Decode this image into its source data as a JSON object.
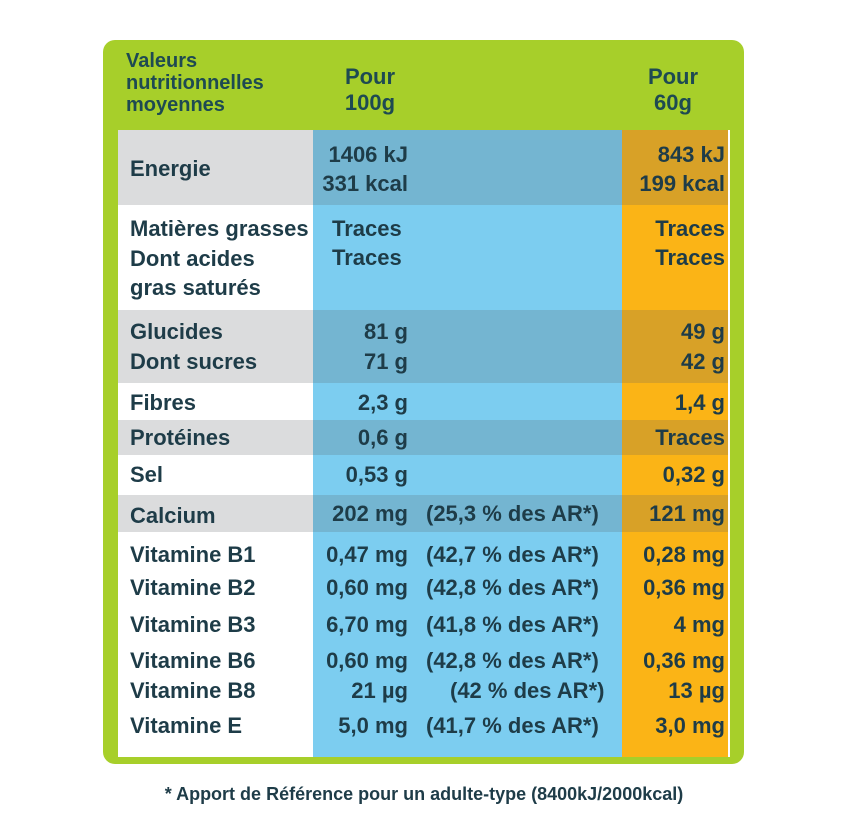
{
  "header": {
    "title_lines": [
      "Valeurs",
      "nutritionnelles",
      "moyennes"
    ],
    "col_100g": [
      "Pour",
      "100g"
    ],
    "col_60g": [
      "Pour",
      "60g"
    ]
  },
  "rows": [
    {
      "label": "Energie",
      "v100_lines": [
        "1406 kJ",
        "331 kcal"
      ],
      "v60_lines": [
        "843 kJ",
        "199 kcal"
      ]
    },
    {
      "label_lines": [
        "Matières grasses",
        "Dont acides",
        "gras saturés"
      ],
      "v100_lines": [
        "Traces",
        "Traces"
      ],
      "v60_lines": [
        "Traces",
        "Traces"
      ]
    },
    {
      "label_lines": [
        "Glucides",
        "Dont sucres"
      ],
      "v100_lines": [
        "81 g",
        "71 g"
      ],
      "v60_lines": [
        "49 g",
        "42 g"
      ]
    },
    {
      "label": "Fibres",
      "v100": "2,3 g",
      "v60": "1,4 g"
    },
    {
      "label": "Protéines",
      "v100": "0,6 g",
      "v60": "Traces"
    },
    {
      "label": "Sel",
      "v100": "0,53 g",
      "v60": "0,32 g"
    },
    {
      "label": "Calcium",
      "v100": "202 mg",
      "ar": "(25,3 % des AR*)",
      "v60": "121 mg"
    }
  ],
  "vitamins": [
    {
      "label": "Vitamine B1",
      "v100": "0,47 mg",
      "ar": "(42,7 % des AR*)",
      "v60": "0,28 mg"
    },
    {
      "label": "Vitamine B2",
      "v100": "0,60 mg",
      "ar": "(42,8 % des AR*)",
      "v60": "0,36 mg"
    },
    {
      "label": "Vitamine B3",
      "v100": "6,70 mg",
      "ar": "(41,8 % des AR*)",
      "v60": "4 mg"
    },
    {
      "label": "Vitamine B6",
      "v100": "0,60 mg",
      "ar": "(42,8 % des AR*)",
      "v60": "0,36 mg"
    },
    {
      "label": "Vitamine B8",
      "v100": "21 µg",
      "ar": "(42 % des AR*)",
      "v60": "13 µg"
    },
    {
      "label": "Vitamine E",
      "v100": "5,0 mg",
      "ar": "(41,7 % des AR*)",
      "v60": "3,0 mg"
    }
  ],
  "footnote": "* Apport de Référence pour un adulte-type (8400kJ/2000kcal)",
  "colors": {
    "green": "#a7cf2a",
    "blue": "#7ccdf0",
    "orange": "#fbb416",
    "text": "#1e3c48"
  }
}
